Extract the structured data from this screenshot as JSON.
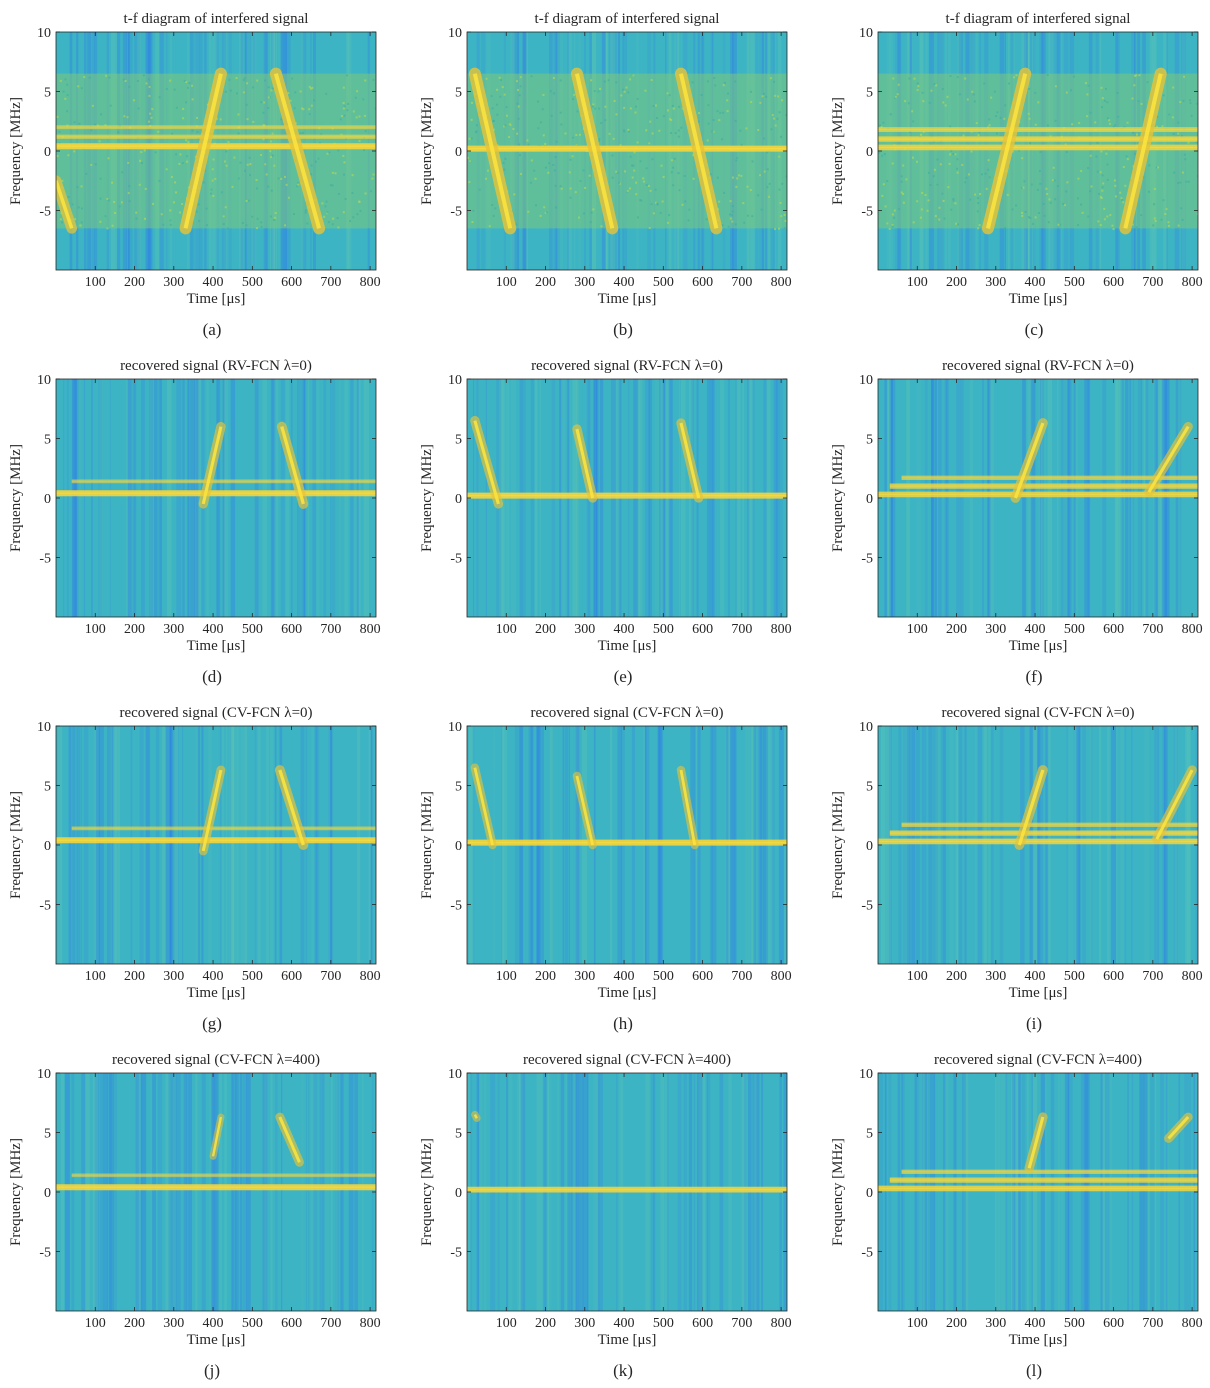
{
  "figure": {
    "xlabel": "Time [μs]",
    "ylabel": "Frequency [MHz]",
    "colors": {
      "background": "#3db4c4",
      "low": "#2f7fe6",
      "high": "#f7d53a",
      "peak": "#fbe43e",
      "mid": "#7ec97a"
    }
  },
  "chart_data": [
    {
      "type": "heatmap",
      "caption": "(a)",
      "title": "t-f diagram of interfered signal",
      "xlim": [
        0,
        815
      ],
      "ylim": [
        -10,
        10
      ],
      "xticks": [
        100,
        200,
        300,
        400,
        500,
        600,
        700,
        800
      ],
      "yticks": [
        10,
        5,
        0,
        -5
      ],
      "interference_band_mhz": [
        -6.5,
        6.5
      ],
      "tones": [
        {
          "f": 0.4,
          "t0": 0,
          "t1": 815,
          "strength": 1.0
        },
        {
          "f": 1.2,
          "t0": 0,
          "t1": 815,
          "strength": 0.55
        },
        {
          "f": 2.0,
          "t0": 0,
          "t1": 815,
          "strength": 0.45
        }
      ],
      "chirps": [
        {
          "t0": 330,
          "t1": 420,
          "f0": -6.5,
          "f1": 6.5,
          "strength": 1.0
        },
        {
          "t0": 560,
          "t1": 670,
          "f0": 6.5,
          "f1": -6.5,
          "strength": 1.0
        },
        {
          "t0": 0,
          "t1": 40,
          "f0": -2.5,
          "f1": -6.5,
          "strength": 0.85
        }
      ]
    },
    {
      "type": "heatmap",
      "caption": "(b)",
      "title": "t-f diagram of interfered signal",
      "xlim": [
        0,
        815
      ],
      "ylim": [
        -10,
        10
      ],
      "xticks": [
        100,
        200,
        300,
        400,
        500,
        600,
        700,
        800
      ],
      "yticks": [
        10,
        5,
        0,
        -5
      ],
      "interference_band_mhz": [
        -6.5,
        6.5
      ],
      "tones": [
        {
          "f": 0.2,
          "t0": 0,
          "t1": 815,
          "strength": 1.0
        }
      ],
      "chirps": [
        {
          "t0": 20,
          "t1": 110,
          "f0": 6.5,
          "f1": -6.5,
          "strength": 1.0
        },
        {
          "t0": 280,
          "t1": 370,
          "f0": 6.5,
          "f1": -6.5,
          "strength": 1.0
        },
        {
          "t0": 545,
          "t1": 635,
          "f0": 6.5,
          "f1": -6.5,
          "strength": 1.0
        }
      ]
    },
    {
      "type": "heatmap",
      "caption": "(c)",
      "title": "t-f diagram of interfered signal",
      "xlim": [
        0,
        815
      ],
      "ylim": [
        -10,
        10
      ],
      "xticks": [
        100,
        200,
        300,
        400,
        500,
        600,
        700,
        800
      ],
      "yticks": [
        10,
        5,
        0,
        -5
      ],
      "interference_band_mhz": [
        -6.5,
        6.5
      ],
      "tones": [
        {
          "f": 0.3,
          "t0": 0,
          "t1": 815,
          "strength": 0.9
        },
        {
          "f": 1.0,
          "t0": 0,
          "t1": 815,
          "strength": 0.85
        },
        {
          "f": 1.8,
          "t0": 0,
          "t1": 815,
          "strength": 0.7
        }
      ],
      "chirps": [
        {
          "t0": 280,
          "t1": 375,
          "f0": -6.5,
          "f1": 6.5,
          "strength": 1.0
        },
        {
          "t0": 630,
          "t1": 720,
          "f0": -6.5,
          "f1": 6.5,
          "strength": 1.0
        }
      ]
    },
    {
      "type": "heatmap",
      "caption": "(d)",
      "title": "recovered signal (RV-FCN λ=0)",
      "xlim": [
        0,
        815
      ],
      "ylim": [
        -10,
        10
      ],
      "xticks": [
        100,
        200,
        300,
        400,
        500,
        600,
        700,
        800
      ],
      "yticks": [
        10,
        5,
        0,
        -5
      ],
      "tones": [
        {
          "f": 0.4,
          "t0": 0,
          "t1": 815,
          "strength": 1.0
        },
        {
          "f": 1.4,
          "t0": 40,
          "t1": 815,
          "strength": 0.45
        }
      ],
      "chirps": [
        {
          "t0": 375,
          "t1": 420,
          "f0": -0.5,
          "f1": 6.0,
          "strength": 0.7
        },
        {
          "t0": 575,
          "t1": 630,
          "f0": 6.0,
          "f1": -0.5,
          "strength": 0.75
        }
      ]
    },
    {
      "type": "heatmap",
      "caption": "(e)",
      "title": "recovered signal (RV-FCN λ=0)",
      "xlim": [
        0,
        815
      ],
      "ylim": [
        -10,
        10
      ],
      "xticks": [
        100,
        200,
        300,
        400,
        500,
        600,
        700,
        800
      ],
      "yticks": [
        10,
        5,
        0,
        -5
      ],
      "tones": [
        {
          "f": 0.2,
          "t0": 0,
          "t1": 815,
          "strength": 1.0
        }
      ],
      "chirps": [
        {
          "t0": 20,
          "t1": 80,
          "f0": 6.5,
          "f1": -0.5,
          "strength": 0.7
        },
        {
          "t0": 280,
          "t1": 320,
          "f0": 5.8,
          "f1": 0.0,
          "strength": 0.7
        },
        {
          "t0": 545,
          "t1": 590,
          "f0": 6.3,
          "f1": 0.0,
          "strength": 0.7
        }
      ]
    },
    {
      "type": "heatmap",
      "caption": "(f)",
      "title": "recovered signal (RV-FCN λ=0)",
      "xlim": [
        0,
        815
      ],
      "ylim": [
        -10,
        10
      ],
      "xticks": [
        100,
        200,
        300,
        400,
        500,
        600,
        700,
        800
      ],
      "yticks": [
        10,
        5,
        0,
        -5
      ],
      "tones": [
        {
          "f": 0.3,
          "t0": 0,
          "t1": 815,
          "strength": 0.9
        },
        {
          "f": 1.0,
          "t0": 30,
          "t1": 815,
          "strength": 0.8
        },
        {
          "f": 1.7,
          "t0": 60,
          "t1": 815,
          "strength": 0.6
        }
      ],
      "chirps": [
        {
          "t0": 350,
          "t1": 420,
          "f0": 0.0,
          "f1": 6.3,
          "strength": 0.75
        },
        {
          "t0": 690,
          "t1": 790,
          "f0": 0.5,
          "f1": 6.0,
          "strength": 0.7
        }
      ]
    },
    {
      "type": "heatmap",
      "caption": "(g)",
      "title": "recovered signal (CV-FCN λ=0)",
      "xlim": [
        0,
        815
      ],
      "ylim": [
        -10,
        10
      ],
      "xticks": [
        100,
        200,
        300,
        400,
        500,
        600,
        700,
        800
      ],
      "yticks": [
        10,
        5,
        0,
        -5
      ],
      "tones": [
        {
          "f": 0.4,
          "t0": 0,
          "t1": 815,
          "strength": 1.0
        },
        {
          "f": 1.4,
          "t0": 40,
          "t1": 815,
          "strength": 0.45
        }
      ],
      "chirps": [
        {
          "t0": 375,
          "t1": 420,
          "f0": -0.5,
          "f1": 6.3,
          "strength": 0.65
        },
        {
          "t0": 570,
          "t1": 630,
          "f0": 6.3,
          "f1": 0.0,
          "strength": 0.75
        }
      ]
    },
    {
      "type": "heatmap",
      "caption": "(h)",
      "title": "recovered signal (CV-FCN λ=0)",
      "xlim": [
        0,
        815
      ],
      "ylim": [
        -10,
        10
      ],
      "xticks": [
        100,
        200,
        300,
        400,
        500,
        600,
        700,
        800
      ],
      "yticks": [
        10,
        5,
        0,
        -5
      ],
      "tones": [
        {
          "f": 0.2,
          "t0": 0,
          "t1": 815,
          "strength": 1.0
        }
      ],
      "chirps": [
        {
          "t0": 20,
          "t1": 65,
          "f0": 6.5,
          "f1": 0.0,
          "strength": 0.6
        },
        {
          "t0": 280,
          "t1": 320,
          "f0": 5.8,
          "f1": 0.0,
          "strength": 0.6
        },
        {
          "t0": 545,
          "t1": 580,
          "f0": 6.3,
          "f1": 0.0,
          "strength": 0.6
        }
      ]
    },
    {
      "type": "heatmap",
      "caption": "(i)",
      "title": "recovered signal (CV-FCN λ=0)",
      "xlim": [
        0,
        815
      ],
      "ylim": [
        -10,
        10
      ],
      "xticks": [
        100,
        200,
        300,
        400,
        500,
        600,
        700,
        800
      ],
      "yticks": [
        10,
        5,
        0,
        -5
      ],
      "tones": [
        {
          "f": 0.3,
          "t0": 0,
          "t1": 815,
          "strength": 0.9
        },
        {
          "f": 1.0,
          "t0": 30,
          "t1": 815,
          "strength": 0.8
        },
        {
          "f": 1.7,
          "t0": 60,
          "t1": 815,
          "strength": 0.6
        }
      ],
      "chirps": [
        {
          "t0": 360,
          "t1": 420,
          "f0": 0.0,
          "f1": 6.3,
          "strength": 0.75
        },
        {
          "t0": 710,
          "t1": 800,
          "f0": 0.5,
          "f1": 6.3,
          "strength": 0.7
        }
      ]
    },
    {
      "type": "heatmap",
      "caption": "(j)",
      "title": "recovered signal (CV-FCN λ=400)",
      "xlim": [
        0,
        815
      ],
      "ylim": [
        -10,
        10
      ],
      "xticks": [
        100,
        200,
        300,
        400,
        500,
        600,
        700,
        800
      ],
      "yticks": [
        10,
        5,
        0,
        -5
      ],
      "tones": [
        {
          "f": 0.4,
          "t0": 0,
          "t1": 815,
          "strength": 1.0
        },
        {
          "f": 1.4,
          "t0": 40,
          "t1": 815,
          "strength": 0.4
        }
      ],
      "chirps": [
        {
          "t0": 400,
          "t1": 420,
          "f0": 3.0,
          "f1": 6.3,
          "strength": 0.45
        },
        {
          "t0": 570,
          "t1": 620,
          "f0": 6.3,
          "f1": 2.5,
          "strength": 0.65
        }
      ]
    },
    {
      "type": "heatmap",
      "caption": "(k)",
      "title": "recovered signal (CV-FCN λ=400)",
      "xlim": [
        0,
        815
      ],
      "ylim": [
        -10,
        10
      ],
      "xticks": [
        100,
        200,
        300,
        400,
        500,
        600,
        700,
        800
      ],
      "yticks": [
        10,
        5,
        0,
        -5
      ],
      "tones": [
        {
          "f": 0.2,
          "t0": 0,
          "t1": 815,
          "strength": 0.95
        }
      ],
      "chirps": [
        {
          "t0": 20,
          "t1": 25,
          "f0": 6.5,
          "f1": 6.2,
          "strength": 0.5
        }
      ]
    },
    {
      "type": "heatmap",
      "caption": "(l)",
      "title": "recovered signal (CV-FCN λ=400)",
      "xlim": [
        0,
        815
      ],
      "ylim": [
        -10,
        10
      ],
      "xticks": [
        100,
        200,
        300,
        400,
        500,
        600,
        700,
        800
      ],
      "yticks": [
        10,
        5,
        0,
        -5
      ],
      "tones": [
        {
          "f": 0.3,
          "t0": 0,
          "t1": 815,
          "strength": 0.9
        },
        {
          "f": 1.0,
          "t0": 30,
          "t1": 815,
          "strength": 0.8
        },
        {
          "f": 1.7,
          "t0": 60,
          "t1": 815,
          "strength": 0.6
        }
      ],
      "chirps": [
        {
          "t0": 385,
          "t1": 420,
          "f0": 2.0,
          "f1": 6.3,
          "strength": 0.7
        },
        {
          "t0": 740,
          "t1": 790,
          "f0": 4.5,
          "f1": 6.3,
          "strength": 0.65
        }
      ]
    }
  ]
}
